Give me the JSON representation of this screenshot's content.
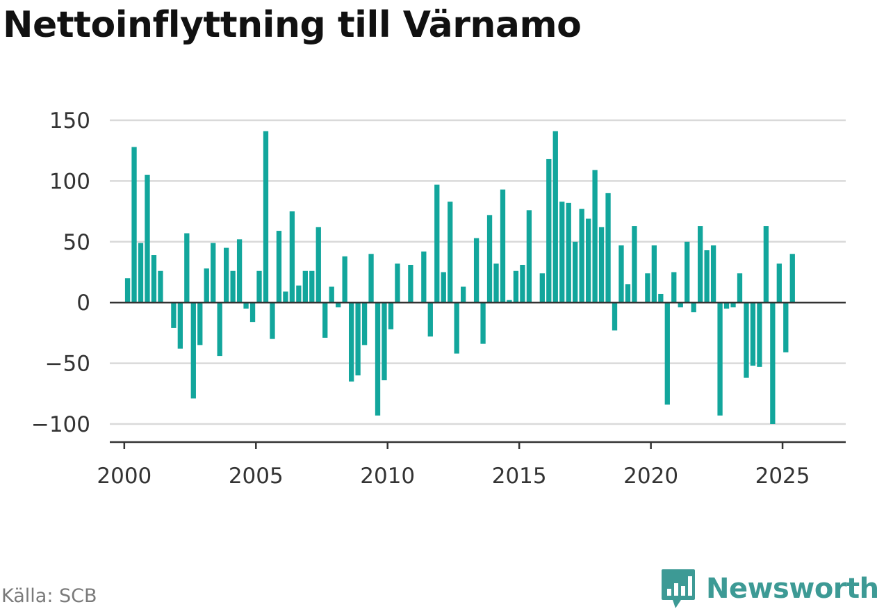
{
  "title": "Nettoinflyttning till Värnamo",
  "source": "Källa: SCB",
  "brand": {
    "name": "Newsworthy",
    "icon": "bar-chart-logo-icon",
    "color": "#3d9a95"
  },
  "colors": {
    "bar": "#12a69c",
    "grid": "#d9d9d9",
    "zero_line": "#333333",
    "axis": "#333333"
  },
  "chart_data": {
    "type": "bar",
    "title": "Nettoinflyttning till Värnamo",
    "xlabel": "",
    "ylabel": "",
    "ylim": [
      -100,
      150
    ],
    "yticks": [
      150,
      100,
      50,
      0,
      -50,
      -100
    ],
    "ytick_labels": [
      "150",
      "100",
      "50",
      "0",
      "−50",
      "−100"
    ],
    "xlim": [
      1999.45,
      2027.4
    ],
    "xticks": [
      2000,
      2005,
      2010,
      2015,
      2020,
      2025
    ],
    "xtick_labels": [
      "2000",
      "2005",
      "2010",
      "2015",
      "2020",
      "2025"
    ],
    "grid": true,
    "bar_color": "#12a69c",
    "x": [
      2000.125,
      2000.375,
      2000.625,
      2000.875,
      2001.125,
      2001.375,
      2001.625,
      2001.875,
      2002.125,
      2002.375,
      2002.625,
      2002.875,
      2003.125,
      2003.375,
      2003.625,
      2003.875,
      2004.125,
      2004.375,
      2004.625,
      2004.875,
      2005.125,
      2005.375,
      2005.625,
      2005.875,
      2006.125,
      2006.375,
      2006.625,
      2006.875,
      2007.125,
      2007.375,
      2007.625,
      2007.875,
      2008.125,
      2008.375,
      2008.625,
      2008.875,
      2009.125,
      2009.375,
      2009.625,
      2009.875,
      2010.125,
      2010.375,
      2010.625,
      2010.875,
      2011.125,
      2011.375,
      2011.625,
      2011.875,
      2012.125,
      2012.375,
      2012.625,
      2012.875,
      2013.125,
      2013.375,
      2013.625,
      2013.875,
      2014.125,
      2014.375,
      2014.625,
      2014.875,
      2015.125,
      2015.375,
      2015.625,
      2015.875,
      2016.125,
      2016.375,
      2016.625,
      2016.875,
      2017.125,
      2017.375,
      2017.625,
      2017.875,
      2018.125,
      2018.375,
      2018.625,
      2018.875,
      2019.125,
      2019.375,
      2019.625,
      2019.875,
      2020.125,
      2020.375,
      2020.625,
      2020.875,
      2021.125,
      2021.375,
      2021.625,
      2021.875,
      2022.125,
      2022.375,
      2022.625,
      2022.875,
      2023.125,
      2023.375,
      2023.625,
      2023.875,
      2024.125,
      2024.375,
      2024.625,
      2024.875,
      2025.125,
      2025.375
    ],
    "values": [
      20,
      128,
      49,
      105,
      39,
      26,
      0,
      -21,
      -38,
      57,
      -79,
      -35,
      28,
      49,
      -44,
      45,
      26,
      52,
      -5,
      -16,
      26,
      141,
      -30,
      59,
      9,
      75,
      14,
      26,
      26,
      62,
      -29,
      13,
      -4,
      38,
      -65,
      -60,
      -35,
      40,
      -93,
      -64,
      -22,
      32,
      0,
      31,
      0,
      42,
      -28,
      97,
      25,
      83,
      -42,
      13,
      0,
      53,
      -34,
      72,
      32,
      93,
      2,
      26,
      31,
      76,
      0,
      24,
      118,
      141,
      83,
      82,
      50,
      77,
      69,
      109,
      62,
      90,
      -23,
      47,
      15,
      63,
      0,
      24,
      47,
      7,
      -84,
      25,
      -4,
      50,
      -8,
      63,
      43,
      47,
      -93,
      -5,
      -4,
      24,
      -62,
      -52,
      -53,
      63,
      -100,
      32,
      -41,
      40
    ]
  }
}
